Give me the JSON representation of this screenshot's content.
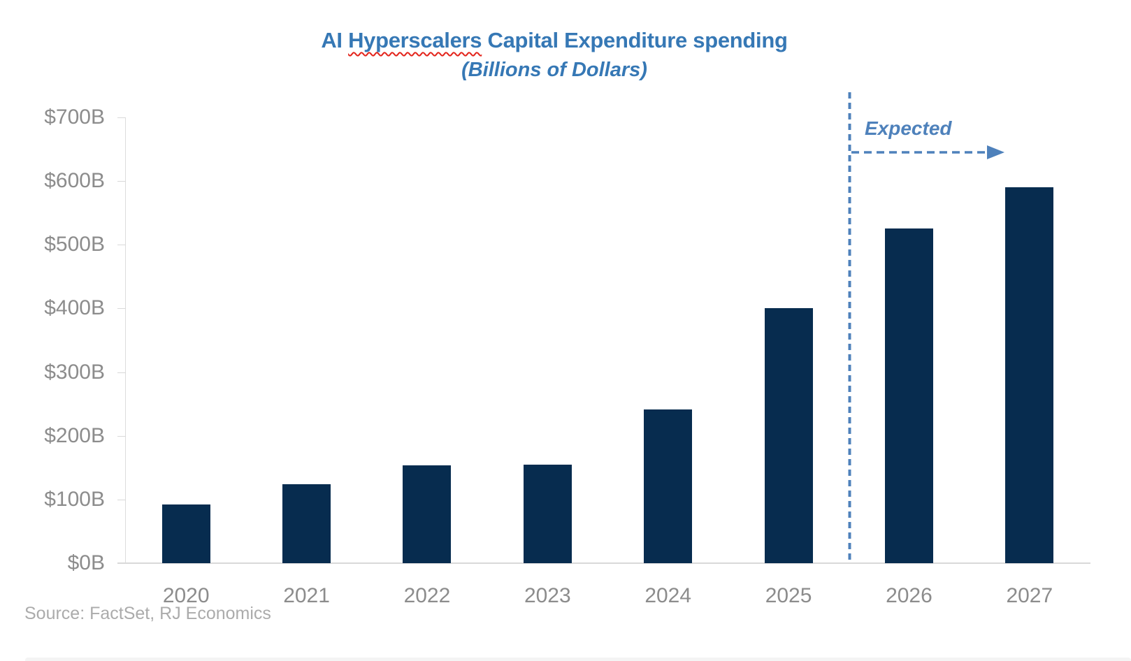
{
  "header": {
    "title_part1": "AI ",
    "title_misspelled_word": "Hyperscalers",
    "title_part2": " Capital Expenditure spending",
    "subtitle": "(Billions of Dollars)"
  },
  "annotation": {
    "label": "Expected"
  },
  "footer": {
    "source": "Source: FactSet, RJ Economics"
  },
  "colors": {
    "title_blue": "#3678B5",
    "annotation_blue": "#4E81BB",
    "bar_navy": "#072C4F",
    "axis_text_gray": "#8C8C8C",
    "source_gray": "#ABABAB",
    "axis_line_gray": "#D9D9D9",
    "spellcheck_red": "#E3241B"
  },
  "y_axis": {
    "tick_labels": [
      "$700B",
      "$600B",
      "$500B",
      "$400B",
      "$300B",
      "$200B",
      "$100B",
      "$0B"
    ],
    "tick_values": [
      700,
      600,
      500,
      400,
      300,
      200,
      100,
      0
    ]
  },
  "chart_data": {
    "type": "bar",
    "title": "AI Hyperscalers Capital Expenditure spending",
    "subtitle": "(Billions of Dollars)",
    "categories": [
      "2020",
      "2021",
      "2022",
      "2023",
      "2024",
      "2025",
      "2026",
      "2027"
    ],
    "values": [
      92,
      124,
      154,
      155,
      241,
      400,
      525,
      590
    ],
    "unit": "billions of US dollars",
    "xlabel": "",
    "ylabel": "",
    "ylim": [
      0,
      700
    ],
    "y_tick_interval": 100,
    "y_tick_labels": [
      "$0B",
      "$100B",
      "$200B",
      "$300B",
      "$400B",
      "$500B",
      "$600B",
      "$700B"
    ],
    "gridlines": false,
    "legend": false,
    "bar_color": "#072C4F",
    "forecast": {
      "divider_after_category": "2025",
      "label": "Expected",
      "forecast_categories": [
        "2026",
        "2027"
      ]
    },
    "source": "Source: FactSet, RJ Economics"
  }
}
